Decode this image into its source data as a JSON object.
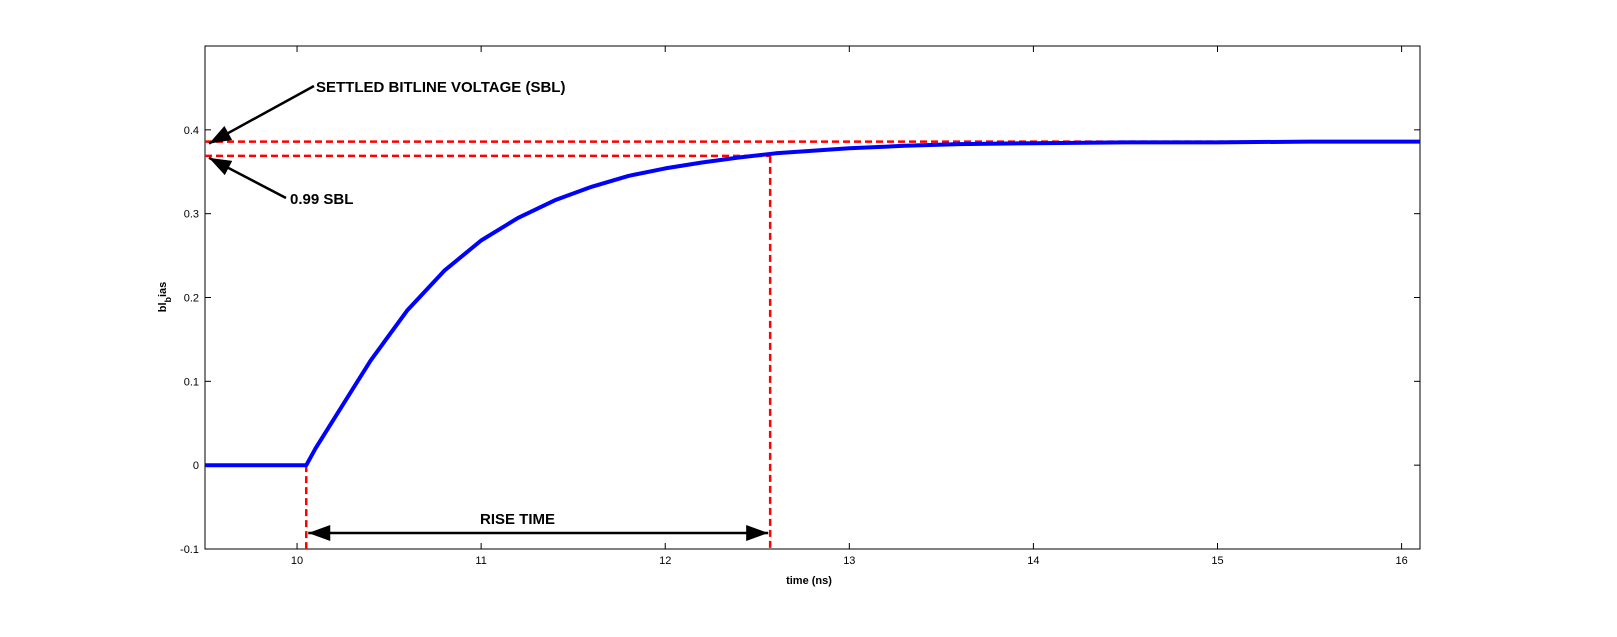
{
  "chart_data": {
    "type": "line",
    "xlabel": "time (ns)",
    "ylabel_main": "bl",
    "ylabel_sub": "b",
    "ylabel_rest": "ias",
    "xlim": [
      9.5,
      16.1
    ],
    "ylim": [
      -0.1,
      0.5
    ],
    "xticks": [
      10,
      11,
      12,
      13,
      14,
      15,
      16
    ],
    "yticks": [
      -0.1,
      0,
      0.1,
      0.2,
      0.3,
      0.4
    ],
    "grid": false,
    "series": [
      {
        "color": "#0000ff",
        "x": [
          9.5,
          10.05,
          10.1,
          10.2,
          10.3,
          10.4,
          10.6,
          10.8,
          11.0,
          11.2,
          11.4,
          11.6,
          11.8,
          12.0,
          12.2,
          12.4,
          12.6,
          12.8,
          13.0,
          13.3,
          13.6,
          14.0,
          14.5,
          15.0,
          15.5,
          16.0,
          16.1
        ],
        "y": [
          0,
          0,
          0.02,
          0.055,
          0.09,
          0.125,
          0.185,
          0.232,
          0.268,
          0.295,
          0.316,
          0.332,
          0.345,
          0.354,
          0.361,
          0.367,
          0.372,
          0.375,
          0.378,
          0.381,
          0.383,
          0.384,
          0.385,
          0.385,
          0.386,
          0.386,
          0.386
        ]
      }
    ],
    "reference_lines": {
      "color": "#ff0000",
      "sbl_y": 0.386,
      "sbl99_y": 0.369,
      "rise_start_x": 10.05,
      "rise_end_x": 12.57
    },
    "annotations": {
      "sbl_label": "SETTLED BITLINE VOLTAGE (SBL)",
      "sbl99_label": "0.99 SBL",
      "rise_label": "RISE TIME"
    }
  }
}
